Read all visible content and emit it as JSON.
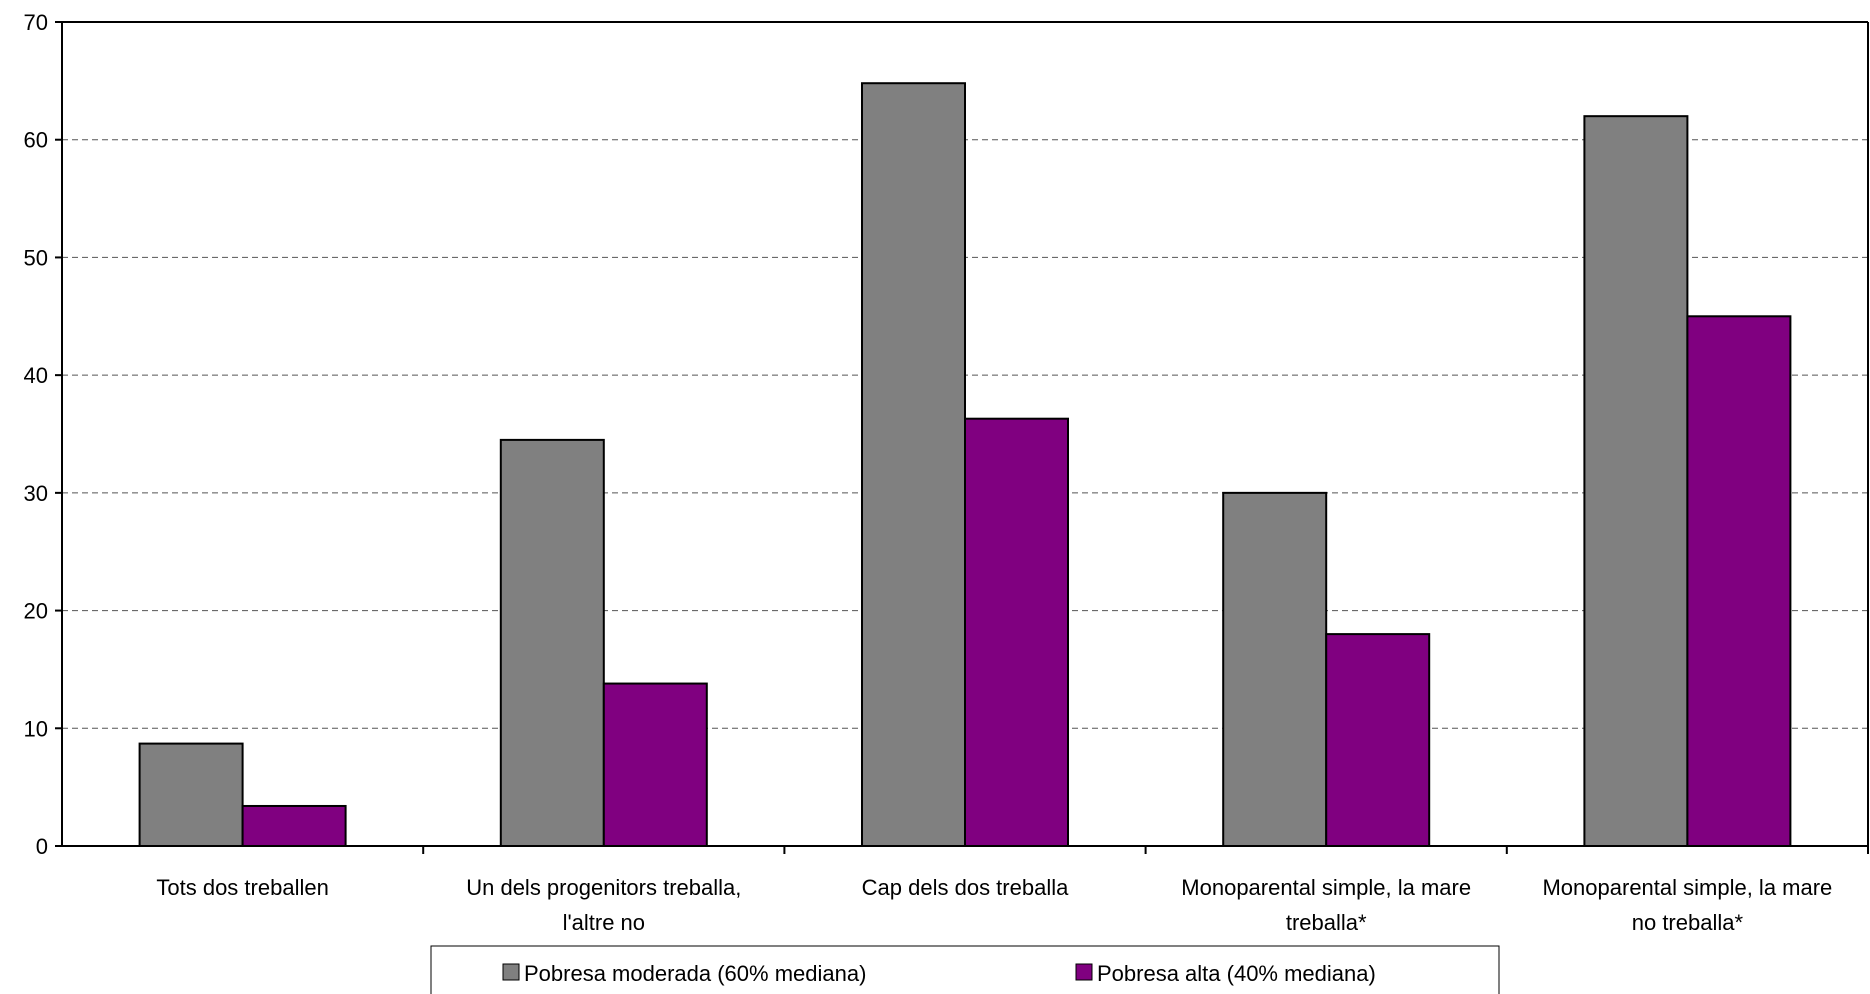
{
  "chart_data": {
    "type": "bar",
    "categories": [
      [
        "Tots dos treballen"
      ],
      [
        "Un dels progenitors treballa,",
        "l'altre no"
      ],
      [
        "Cap dels dos treballa"
      ],
      [
        "Monoparental simple, la mare",
        "treballa*"
      ],
      [
        "Monoparental simple, la mare",
        "no treballa*"
      ]
    ],
    "series": [
      {
        "name": "Pobresa moderada (60% mediana)",
        "color": "#808080",
        "values": [
          8.7,
          34.5,
          64.8,
          30.0,
          62.0
        ]
      },
      {
        "name": "Pobresa alta (40% mediana)",
        "color": "#800080",
        "values": [
          3.4,
          13.8,
          36.3,
          18.0,
          45.0
        ]
      }
    ],
    "y_ticks": [
      "0",
      "10",
      "20",
      "30",
      "40",
      "50",
      "60",
      "70"
    ],
    "ylim": [
      0,
      70
    ],
    "grid": "horizontal dashed",
    "legend_position": "bottom"
  }
}
